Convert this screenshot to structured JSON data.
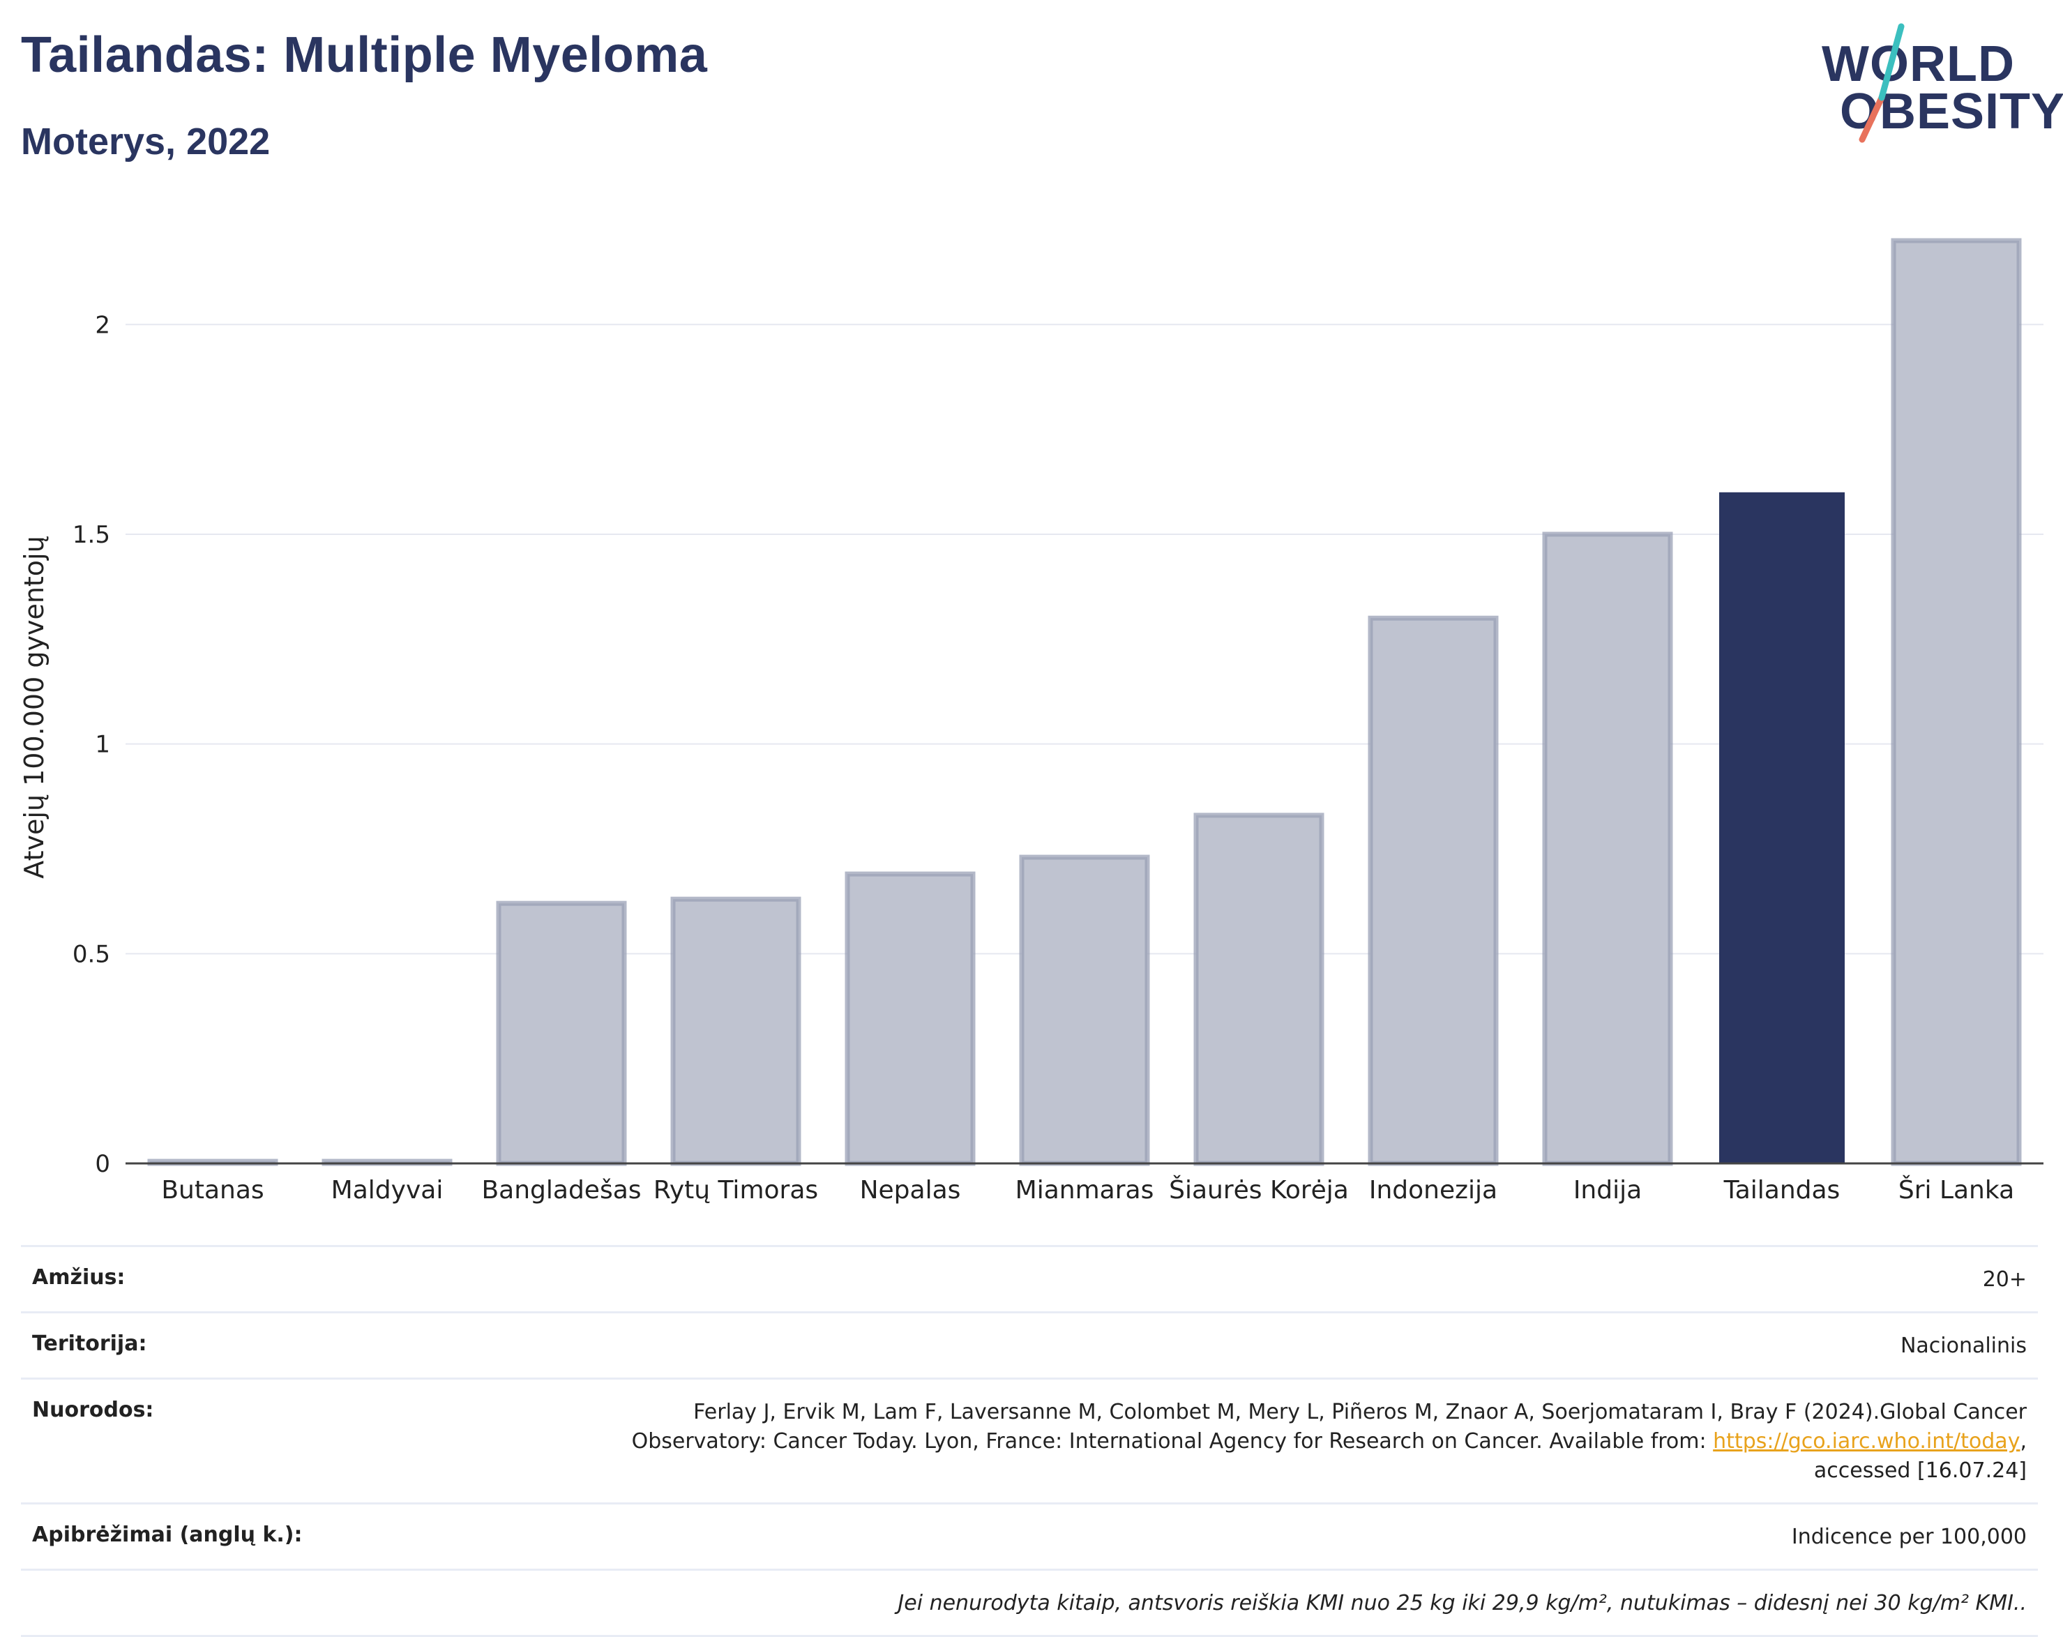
{
  "header": {
    "title": "Tailandas: Multiple Myeloma",
    "subtitle": "Moterys, 2022"
  },
  "logo": {
    "line1": "WORLD",
    "line2": "OBESITY",
    "colors": {
      "text": "#2a3560",
      "slash_top": "#3bbfbf",
      "slash_bottom": "#e8725c"
    }
  },
  "colors": {
    "bar_default": "#bfc3d0",
    "bar_default_stroke": "#9aa0b5",
    "bar_highlight": "#2a3560",
    "grid": "#e6e8f0",
    "axis": "#444444"
  },
  "chart_data": {
    "type": "bar",
    "categories": [
      "Butanas",
      "Maldyvai",
      "Bangladešas",
      "Rytų Timoras",
      "Nepalas",
      "Mianmaras",
      "Šiaurės Korėja",
      "Indonezija",
      "Indija",
      "Tailandas",
      "Šri Lanka"
    ],
    "values": [
      0,
      0,
      0.62,
      0.63,
      0.69,
      0.73,
      0.83,
      1.3,
      1.5,
      1.6,
      2.2
    ],
    "highlight": "Tailandas",
    "ylabel": "Atvejų 100.000 gyventojų",
    "xlabel": "",
    "ylim": [
      0,
      2.2
    ],
    "yticks": [
      0,
      0.5,
      1,
      1.5,
      2
    ],
    "ytick_labels": [
      "0",
      "0.5",
      "1",
      "1.5",
      "2"
    ],
    "grid": true
  },
  "info": {
    "age_label": "Amžius:",
    "age_value": "20+",
    "territory_label": "Teritorija:",
    "territory_value": "Nacionalinis",
    "refs_label": "Nuorodos:",
    "refs_line1": "Ferlay J, Ervik M, Lam F, Laversanne M, Colombet M, Mery L, Piñeros M, Znaor A, Soerjomataram I, Bray F (2024).Global Cancer",
    "refs_line2_prefix": "Observatory: Cancer Today. Lyon, France: International Agency for Research on Cancer. Available from: ",
    "refs_link": "https://gco.iarc.who.int/today",
    "refs_line2_suffix": ",",
    "refs_line3": "accessed [16.07.24]",
    "defs_label": "Apibrėžimai (anglų k.):",
    "defs_value": "Indicence per 100,000",
    "note": "Jei nenurodyta kitaip, antsvoris reiškia KMI nuo 25 kg iki 29,9 kg/m², nutukimas – didesnį nei 30 kg/m² KMI.."
  }
}
